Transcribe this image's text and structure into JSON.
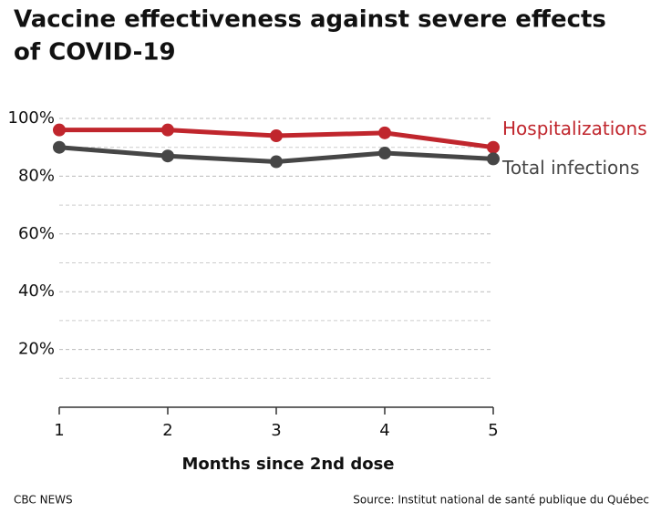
{
  "chart_data": {
    "type": "line",
    "title": "Vaccine effectiveness against severe effects of COVID-19",
    "x_label": "Months since 2nd dose",
    "x": [
      1,
      2,
      3,
      4,
      5
    ],
    "series": [
      {
        "name": "Hospitalizations",
        "color": "#c0262d",
        "values": [
          96,
          96,
          94,
          95,
          90
        ]
      },
      {
        "name": "Total infections",
        "color": "#464646",
        "values": [
          90,
          87,
          85,
          88,
          86
        ]
      }
    ],
    "xlim": [
      1,
      5
    ],
    "xticks": [
      1,
      2,
      3,
      4,
      5
    ],
    "ylim": [
      0,
      100
    ],
    "yticks": [
      {
        "value": 20,
        "label": "20%"
      },
      {
        "value": 40,
        "label": "40%"
      },
      {
        "value": 60,
        "label": "60%"
      },
      {
        "value": 80,
        "label": "80%"
      },
      {
        "value": 100,
        "label": "100%"
      }
    ],
    "minor_yticks": [
      10,
      30,
      50,
      70,
      90
    ],
    "grid": true,
    "credit": "CBC NEWS",
    "source": "Source: Institut national de santé publique du Québec"
  }
}
